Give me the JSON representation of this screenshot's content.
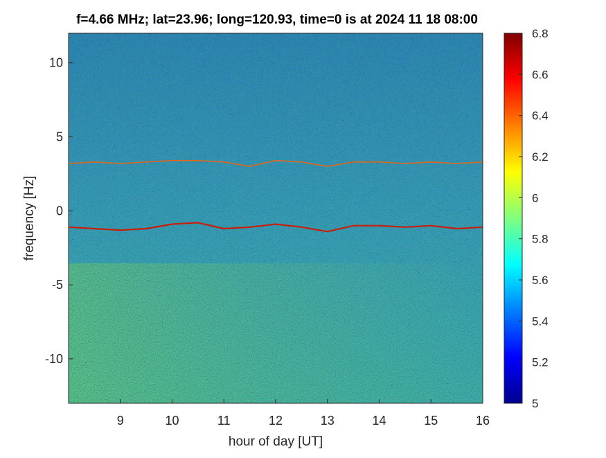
{
  "chart_data": {
    "type": "heatmap",
    "title": "f=4.66 MHz;  lat=23.96; long=120.93, time=0 is at 2024 11 18 08:00",
    "xlabel": "hour of day [UT]",
    "ylabel": "frequency [Hz]",
    "xlim": [
      8,
      16
    ],
    "ylim": [
      -13,
      12
    ],
    "x_ticks": [
      9,
      10,
      11,
      12,
      13,
      14,
      15,
      16
    ],
    "y_ticks": [
      10,
      5,
      0,
      -5,
      -10
    ],
    "colorbar": {
      "colormap": "jet",
      "clim": [
        5,
        6.8
      ],
      "ticks": [
        "6.8",
        "6.6",
        "6.4",
        "6.2",
        "6",
        "5.8",
        "5.6",
        "5.4",
        "5.2",
        "5"
      ]
    },
    "traces": [
      {
        "x": [
          8.0,
          8.5,
          9.0,
          9.5,
          10.0,
          10.5,
          11.0,
          11.5,
          12.0,
          12.5,
          13.0,
          13.5,
          14.0,
          14.5,
          15.0,
          15.5,
          16.0
        ],
        "y": [
          3.2,
          3.3,
          3.2,
          3.3,
          3.4,
          3.4,
          3.3,
          3.0,
          3.4,
          3.3,
          3.0,
          3.3,
          3.3,
          3.2,
          3.3,
          3.2,
          3.3
        ]
      },
      {
        "x": [
          8.0,
          8.5,
          9.0,
          9.5,
          10.0,
          10.5,
          11.0,
          11.5,
          12.0,
          12.5,
          13.0,
          13.5,
          14.0,
          14.5,
          15.0,
          15.5,
          16.0
        ],
        "y": [
          -1.1,
          -1.2,
          -1.3,
          -1.2,
          -0.9,
          -0.8,
          -1.2,
          -1.1,
          -0.9,
          -1.1,
          -1.4,
          -1.0,
          -1.0,
          -1.1,
          -1.0,
          -1.2,
          -1.1
        ]
      }
    ],
    "description": ""
  }
}
